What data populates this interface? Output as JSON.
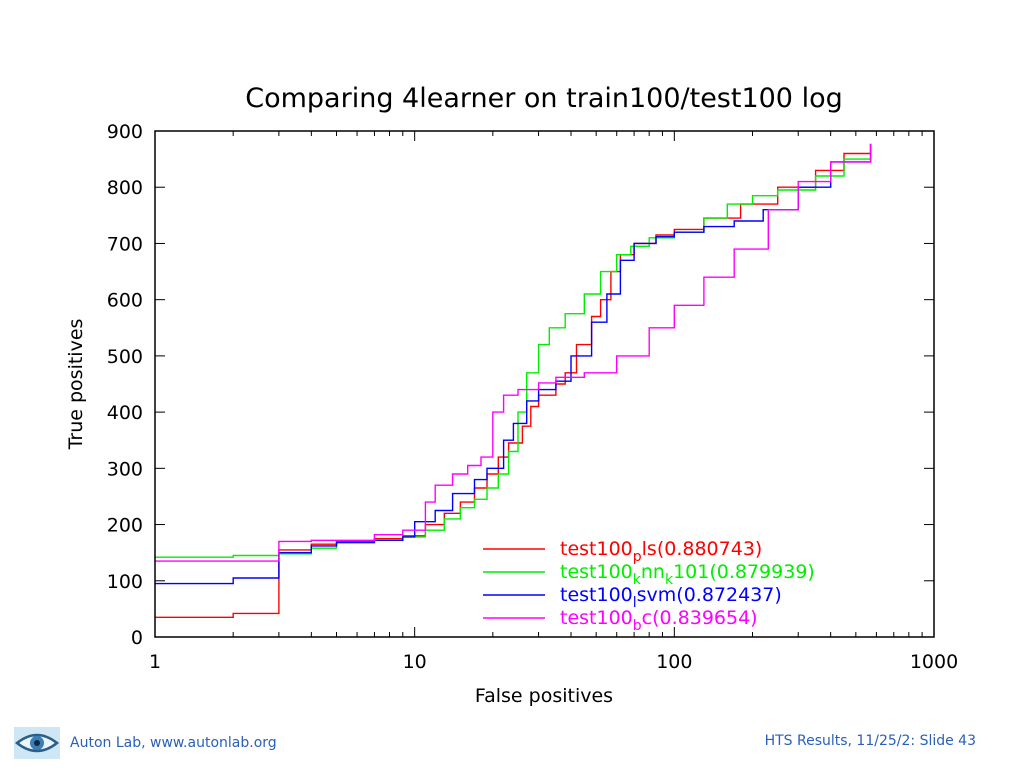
{
  "chart_data": {
    "type": "line",
    "title": "Comparing 4learner on train100/test100 log",
    "xlabel": "False positives",
    "ylabel": "True positives",
    "xscale": "log",
    "xlim": [
      1,
      1000
    ],
    "ylim": [
      0,
      900
    ],
    "x_ticks": [
      "1",
      "10",
      "100",
      "1000"
    ],
    "y_ticks": [
      "0",
      "100",
      "200",
      "300",
      "400",
      "500",
      "600",
      "700",
      "800",
      "900"
    ],
    "legend_position": "bottom-right",
    "series": [
      {
        "name_main": "test100",
        "name_sub": "p",
        "name_rest": "ls(0.880743)",
        "color": "#ff0000",
        "points": [
          [
            1,
            35
          ],
          [
            2,
            35
          ],
          [
            2,
            42
          ],
          [
            3,
            42
          ],
          [
            3,
            45
          ],
          [
            3,
            155
          ],
          [
            4,
            165
          ],
          [
            5,
            170
          ],
          [
            7,
            175
          ],
          [
            9,
            180
          ],
          [
            11,
            200
          ],
          [
            13,
            220
          ],
          [
            15,
            240
          ],
          [
            17,
            265
          ],
          [
            19,
            290
          ],
          [
            21,
            320
          ],
          [
            23,
            345
          ],
          [
            26,
            375
          ],
          [
            28,
            410
          ],
          [
            30,
            430
          ],
          [
            35,
            450
          ],
          [
            38,
            470
          ],
          [
            42,
            520
          ],
          [
            48,
            570
          ],
          [
            52,
            600
          ],
          [
            57,
            650
          ],
          [
            62,
            680
          ],
          [
            70,
            700
          ],
          [
            85,
            715
          ],
          [
            100,
            725
          ],
          [
            130,
            745
          ],
          [
            180,
            770
          ],
          [
            250,
            800
          ],
          [
            350,
            830
          ],
          [
            450,
            860
          ],
          [
            570,
            877
          ]
        ]
      },
      {
        "name_main": "test100",
        "name_sub": "k",
        "name_rest": "nn",
        "name_sub2": "k",
        "name_rest2": "101(0.879939)",
        "color": "#00ee00",
        "points": [
          [
            1,
            142
          ],
          [
            2,
            142
          ],
          [
            2,
            145
          ],
          [
            3,
            145
          ],
          [
            3,
            148
          ],
          [
            4,
            158
          ],
          [
            5,
            168
          ],
          [
            7,
            172
          ],
          [
            9,
            178
          ],
          [
            11,
            190
          ],
          [
            13,
            210
          ],
          [
            15,
            230
          ],
          [
            17,
            245
          ],
          [
            19,
            265
          ],
          [
            21,
            290
          ],
          [
            23,
            330
          ],
          [
            25,
            400
          ],
          [
            27,
            470
          ],
          [
            30,
            520
          ],
          [
            33,
            550
          ],
          [
            38,
            575
          ],
          [
            45,
            610
          ],
          [
            52,
            650
          ],
          [
            60,
            680
          ],
          [
            68,
            695
          ],
          [
            80,
            710
          ],
          [
            100,
            720
          ],
          [
            130,
            745
          ],
          [
            160,
            770
          ],
          [
            200,
            785
          ],
          [
            250,
            795
          ],
          [
            350,
            820
          ],
          [
            450,
            850
          ],
          [
            570,
            877
          ]
        ]
      },
      {
        "name_main": "test100",
        "name_sub": "l",
        "name_rest": "svm(0.872437)",
        "color": "#0000ff",
        "points": [
          [
            1,
            95
          ],
          [
            2,
            95
          ],
          [
            2,
            105
          ],
          [
            3,
            105
          ],
          [
            3,
            150
          ],
          [
            4,
            162
          ],
          [
            5,
            168
          ],
          [
            7,
            172
          ],
          [
            9,
            178
          ],
          [
            10,
            205
          ],
          [
            12,
            225
          ],
          [
            14,
            255
          ],
          [
            17,
            280
          ],
          [
            19,
            300
          ],
          [
            22,
            350
          ],
          [
            24,
            380
          ],
          [
            27,
            420
          ],
          [
            30,
            440
          ],
          [
            35,
            455
          ],
          [
            40,
            500
          ],
          [
            48,
            560
          ],
          [
            55,
            610
          ],
          [
            62,
            670
          ],
          [
            70,
            700
          ],
          [
            85,
            712
          ],
          [
            100,
            720
          ],
          [
            130,
            730
          ],
          [
            170,
            740
          ],
          [
            220,
            760
          ],
          [
            300,
            800
          ],
          [
            400,
            845
          ],
          [
            570,
            877
          ]
        ]
      },
      {
        "name_main": "test100",
        "name_sub": "b",
        "name_rest": "c(0.839654)",
        "color": "#ff00ff",
        "points": [
          [
            1,
            135
          ],
          [
            2,
            135
          ],
          [
            3,
            135
          ],
          [
            3,
            170
          ],
          [
            4,
            172
          ],
          [
            5,
            172
          ],
          [
            7,
            182
          ],
          [
            9,
            190
          ],
          [
            11,
            240
          ],
          [
            12,
            270
          ],
          [
            14,
            290
          ],
          [
            16,
            305
          ],
          [
            18,
            320
          ],
          [
            20,
            400
          ],
          [
            22,
            430
          ],
          [
            25,
            440
          ],
          [
            30,
            452
          ],
          [
            35,
            462
          ],
          [
            45,
            470
          ],
          [
            60,
            500
          ],
          [
            80,
            550
          ],
          [
            100,
            590
          ],
          [
            130,
            640
          ],
          [
            170,
            690
          ],
          [
            230,
            760
          ],
          [
            300,
            810
          ],
          [
            400,
            845
          ],
          [
            570,
            877
          ]
        ]
      }
    ]
  },
  "footer": {
    "left_text": "Auton Lab, www.autonlab.org",
    "right_text": "HTS Results, 11/25/2: Slide 43",
    "logo_icon": "eye-icon"
  }
}
